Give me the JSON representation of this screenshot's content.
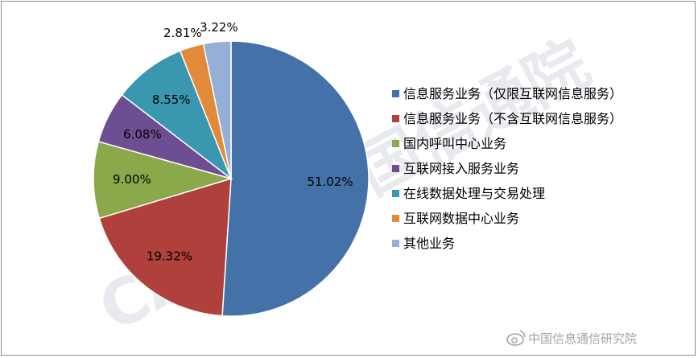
{
  "chart_data": {
    "type": "pie",
    "title": "",
    "start_angle_deg": 0,
    "direction": "clockwise",
    "legend_position": "right",
    "slices": [
      {
        "label": "信息服务业务（仅限互联网信息服务）",
        "value": 51.02,
        "display": "51.02%",
        "color": "#4472A8"
      },
      {
        "label": "信息服务业务（不含互联网信息服务）",
        "value": 19.32,
        "display": "19.32%",
        "color": "#B0403C"
      },
      {
        "label": "国内呼叫中心业务",
        "value": 9.0,
        "display": "9.00%",
        "color": "#8BA84A"
      },
      {
        "label": "互联网接入服务业务",
        "value": 6.08,
        "display": "6.08%",
        "color": "#6E4E92"
      },
      {
        "label": "在线数据处理与交易处理",
        "value": 8.55,
        "display": "8.55%",
        "color": "#3A97B0"
      },
      {
        "label": "互联网数据中心业务",
        "value": 2.81,
        "display": "2.81%",
        "color": "#E08A3A"
      },
      {
        "label": "其他业务",
        "value": 3.22,
        "display": "3.22%",
        "color": "#96AFD6"
      }
    ]
  },
  "watermark": {
    "background_text": "CAICT 中国信通院",
    "footer_text": "中国信息通信研究院",
    "logo_icon": "weibo-icon"
  }
}
